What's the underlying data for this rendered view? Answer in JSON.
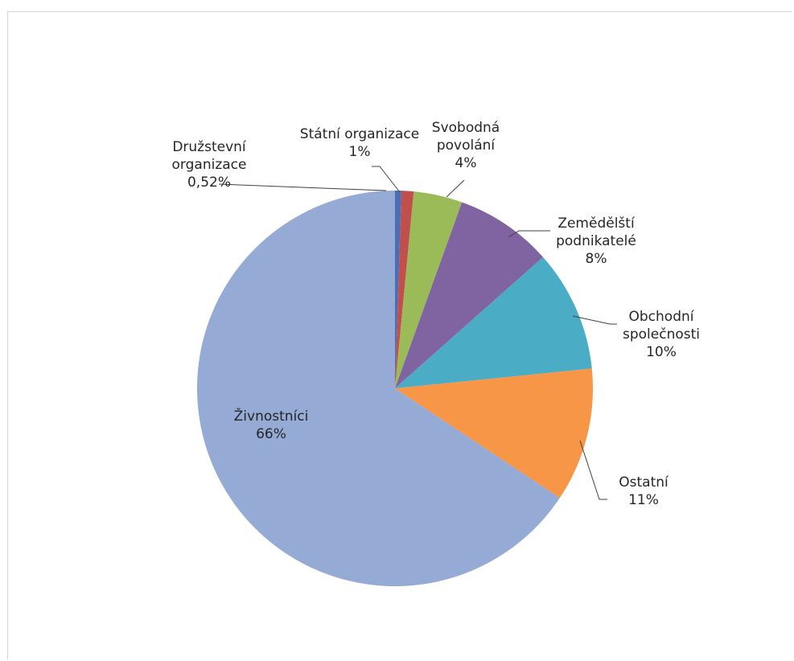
{
  "chart_data": {
    "type": "pie",
    "title": "",
    "categories": [
      "Družstevní organizace",
      "Státní organizace",
      "Svobodná povolání",
      "Zemědělští podnikatelé",
      "Obchodní společnosti",
      "Ostatní",
      "Živnostníci"
    ],
    "values": [
      0.52,
      1,
      4,
      8,
      10,
      11,
      66
    ],
    "labels": [
      {
        "lines": [
          "Družstevní",
          "organizace",
          "0,52%"
        ]
      },
      {
        "lines": [
          "Státní organizace",
          "1%"
        ]
      },
      {
        "lines": [
          "Svobodná",
          "povolání",
          "4%"
        ]
      },
      {
        "lines": [
          "Zemědělští",
          "podnikatelé",
          "8%"
        ]
      },
      {
        "lines": [
          "Obchodní",
          "společnosti",
          "10%"
        ]
      },
      {
        "lines": [
          "Ostatní",
          "11%"
        ]
      },
      {
        "lines": [
          "Živnostníci",
          "66%"
        ]
      }
    ],
    "colors": [
      "#4a6fb5",
      "#c0504d",
      "#9bbb59",
      "#8064a2",
      "#4bacc6",
      "#f79646",
      "#95aad4"
    ],
    "start_angle_deg": 0,
    "direction": "clockwise",
    "legend": "none"
  }
}
